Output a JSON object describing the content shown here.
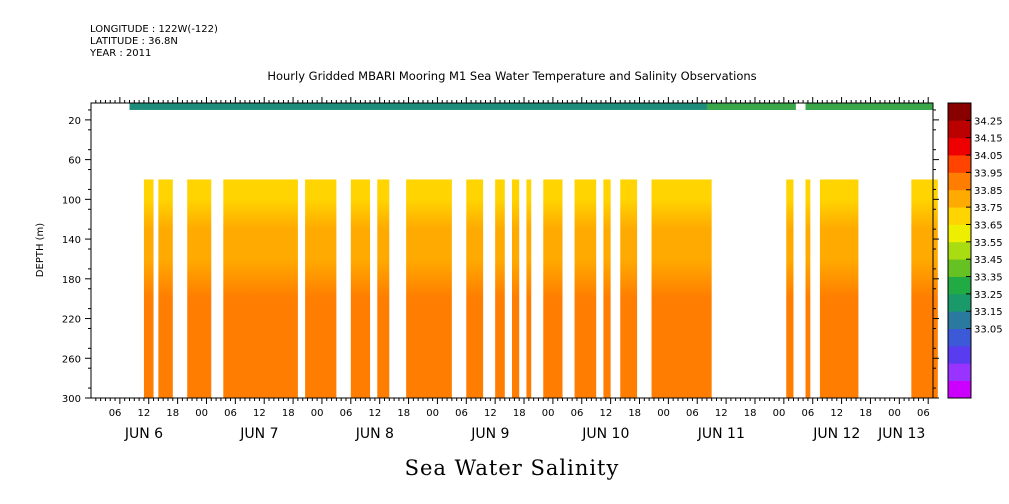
{
  "header": {
    "longitude": "LONGITUDE : 122W(-122)",
    "latitude": "LATITUDE : 36.8N",
    "year": "YEAR : 2011"
  },
  "chart_data": {
    "type": "heatmap",
    "title": "Hourly Gridded MBARI Mooring M1 Sea Water Temperature and Salinity Observations",
    "subtitle": "Sea Water Salinity",
    "ylabel": "DEPTH (m)",
    "xlabel": "",
    "y_ticks": [
      20,
      60,
      100,
      140,
      180,
      220,
      260,
      300
    ],
    "ylim": [
      300,
      3
    ],
    "x_hour_ticks": [
      "06",
      "12",
      "18",
      "00",
      "06",
      "12",
      "18",
      "00",
      "06",
      "12",
      "18",
      "00",
      "06",
      "12",
      "18",
      "00",
      "06",
      "12",
      "18",
      "00",
      "06",
      "12",
      "18",
      "00",
      "06",
      "12",
      "18",
      "00",
      "06",
      "12",
      "18",
      "00"
    ],
    "x_day_labels": [
      "JUN  6",
      "JUN  7",
      "JUN  8",
      "JUN  9",
      "JUN 10",
      "JUN 11",
      "JUN 12",
      "JUN 13"
    ],
    "x_start": "JUN 6 2011 00:00",
    "x_end": "JUN 13 2011 07:00",
    "colorbar": {
      "levels": [
        33.05,
        33.15,
        33.25,
        33.35,
        33.45,
        33.55,
        33.65,
        33.75,
        33.85,
        33.95,
        34.05,
        34.15,
        34.25
      ],
      "labels": [
        "34.25",
        "34.15",
        "34.05",
        "33.95",
        "33.85",
        "33.75",
        "33.65",
        "33.55",
        "33.45",
        "33.35",
        "33.25",
        "33.15",
        "33.05"
      ],
      "colors": [
        "#cc00ff",
        "#9933ff",
        "#5a3cf0",
        "#3c5ad8",
        "#2a7aa0",
        "#1a9a6a",
        "#22aa44",
        "#66c222",
        "#aadd11",
        "#eeee00",
        "#ffd400",
        "#ffaa00",
        "#ff7d00",
        "#ff4400",
        "#ee0000",
        "#bb0000",
        "#880000"
      ]
    },
    "surface_band": {
      "depth_range_m": [
        3,
        10
      ],
      "salinity_approx": 33.45
    },
    "data_depth_range_m": [
      80,
      300
    ],
    "data_segments_hours": [
      [
        11,
        13
      ],
      [
        14,
        17
      ],
      [
        20,
        25
      ],
      [
        27.5,
        43
      ],
      [
        44.5,
        51
      ],
      [
        54,
        58
      ],
      [
        59.5,
        62
      ],
      [
        65.5,
        75
      ],
      [
        78,
        81.5
      ],
      [
        84,
        86
      ],
      [
        87.5,
        89
      ],
      [
        90.5,
        91.5
      ],
      [
        94,
        98
      ],
      [
        100.5,
        105
      ],
      [
        106.5,
        108
      ],
      [
        110,
        113.5
      ],
      [
        116.5,
        129
      ],
      [
        144.5,
        146
      ],
      [
        148.5,
        149.5
      ],
      [
        151.5,
        159.5
      ],
      [
        170.5,
        176
      ]
    ],
    "depth_profile": [
      {
        "depth": 80,
        "salinity": 33.98
      },
      {
        "depth": 100,
        "salinity": 34.0
      },
      {
        "depth": 130,
        "salinity": 34.08
      },
      {
        "depth": 160,
        "salinity": 34.15
      },
      {
        "depth": 200,
        "salinity": 34.18
      },
      {
        "depth": 220,
        "salinity": 34.2
      },
      {
        "depth": 240,
        "salinity": 34.23
      },
      {
        "depth": 255,
        "salinity": 34.25
      },
      {
        "depth": 270,
        "salinity": 34.22
      },
      {
        "depth": 300,
        "salinity": 34.2
      }
    ]
  }
}
